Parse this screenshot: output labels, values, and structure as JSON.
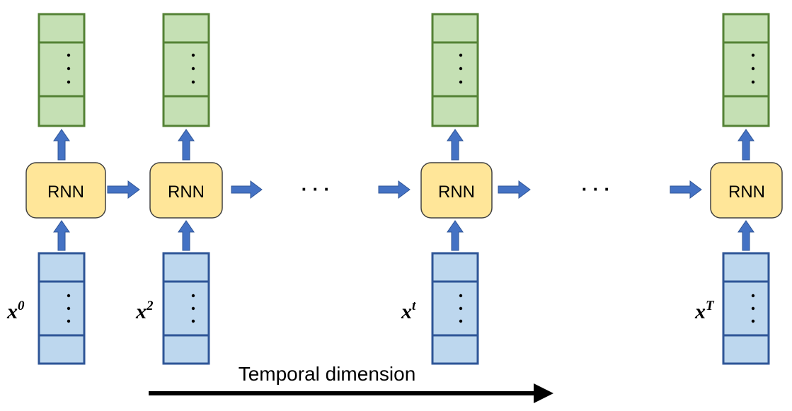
{
  "diagram": {
    "cell_label": "RNN",
    "ellipsis": "· · ·",
    "axis_label": "Temporal dimension",
    "colors": {
      "output_fill": "#c5e0b4",
      "output_stroke": "#548235",
      "input_fill": "#bdd7ee",
      "input_stroke": "#2e5597",
      "cell_fill": "#ffe699",
      "cell_stroke": "#404040",
      "arrow": "#4472c4",
      "axis": "#000000"
    },
    "steps": [
      {
        "x_base": "x",
        "x_sup": "0"
      },
      {
        "x_base": "x",
        "x_sup": "2"
      },
      {
        "x_base": "x",
        "x_sup": "t"
      },
      {
        "x_base": "x",
        "x_sup": "T"
      }
    ]
  }
}
